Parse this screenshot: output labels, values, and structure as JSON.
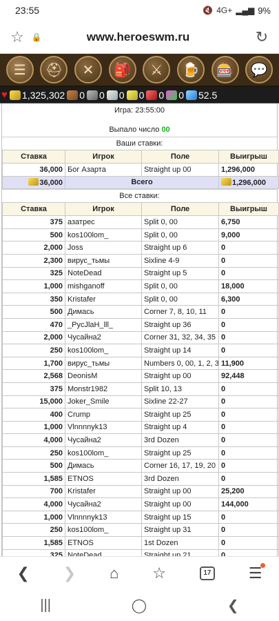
{
  "statusbar": {
    "time": "23:55",
    "signal": "4G+",
    "battery": "9%"
  },
  "browser": {
    "url": "www.heroeswm.ru",
    "tab_count": "17"
  },
  "game_nav": {
    "icons": [
      "menu-icon",
      "knight-helmet-icon",
      "map-scroll-icon",
      "bag-icon",
      "crossed-swords-icon",
      "tavern-mug-icon",
      "roulette-icon",
      "chat-bubble-icon"
    ]
  },
  "resources": {
    "gold": "1,325,302",
    "wood": "0",
    "ore": "0",
    "mercury": "0",
    "sulfur": "0",
    "crystals": "0",
    "gems": "0",
    "diamonds": "52.5"
  },
  "info": {
    "game_label": "Игра: 23:55:00",
    "drop_label": "Выпало число ",
    "drop_number": "00"
  },
  "your_bets": {
    "title": "Ваши ставки:",
    "headers": [
      "Ставка",
      "Игрок",
      "Поле",
      "Выигрыш"
    ],
    "rows": [
      [
        "36,000",
        "Бог Азарта",
        "Straight up 00",
        "1,296,000"
      ]
    ],
    "total_label": "Всего",
    "total_stake": "36,000",
    "total_win": "1,296,000"
  },
  "all_bets": {
    "title": "Все ставки:",
    "headers": [
      "Ставка",
      "Игрок",
      "Поле",
      "Выигрыш"
    ],
    "rows": [
      [
        "375",
        "азатрес",
        "Split 0, 00",
        "6,750"
      ],
      [
        "500",
        "kos100lom_",
        "Split 0, 00",
        "9,000"
      ],
      [
        "2,000",
        "Joss",
        "Straight up 6",
        "0"
      ],
      [
        "2,300",
        "вирус_тьмы",
        "Sixline 4-9",
        "0"
      ],
      [
        "325",
        "NoteDead",
        "Straight up 5",
        "0"
      ],
      [
        "1,000",
        "mishganoff",
        "Split 0, 00",
        "18,000"
      ],
      [
        "350",
        "Kristafer",
        "Split 0, 00",
        "6,300"
      ],
      [
        "500",
        "Димась",
        "Corner 7, 8, 10, 11",
        "0"
      ],
      [
        "470",
        "_PycJlaH_lll_",
        "Straight up 36",
        "0"
      ],
      [
        "2,000",
        "Чусайна2",
        "Corner 31, 32, 34, 35",
        "0"
      ],
      [
        "250",
        "kos100lom_",
        "Straight up 14",
        "0"
      ],
      [
        "1,700",
        "вирус_тьмы",
        "Numbers 0, 00, 1, 2, 3",
        "11,900"
      ],
      [
        "2,568",
        "DeonisM",
        "Straight up 00",
        "92,448"
      ],
      [
        "375",
        "Monstr1982",
        "Split 10, 13",
        "0"
      ],
      [
        "15,000",
        "Joker_Smile",
        "Sixline 22-27",
        "0"
      ],
      [
        "400",
        "Crump",
        "Straight up 25",
        "0"
      ],
      [
        "1,000",
        "Vlnnnnyk13",
        "Straight up 4",
        "0"
      ],
      [
        "4,000",
        "Чусайна2",
        "3rd Dozen",
        "0"
      ],
      [
        "250",
        "kos100lom_",
        "Straight up 25",
        "0"
      ],
      [
        "500",
        "Димась",
        "Corner 16, 17, 19, 20",
        "0"
      ],
      [
        "1,585",
        "ETNOS",
        "3rd Dozen",
        "0"
      ],
      [
        "700",
        "Kristafer",
        "Straight up 00",
        "25,200"
      ],
      [
        "4,000",
        "Чусайна2",
        "Straight up 00",
        "144,000"
      ],
      [
        "1,000",
        "Vlnnnnyk13",
        "Straight up 15",
        "0"
      ],
      [
        "250",
        "kos100lom_",
        "Straight up 31",
        "0"
      ],
      [
        "1,585",
        "ETNOS",
        "1st Dozen",
        "0"
      ],
      [
        "325",
        "NoteDead",
        "Straight up 21",
        "0"
      ]
    ]
  }
}
